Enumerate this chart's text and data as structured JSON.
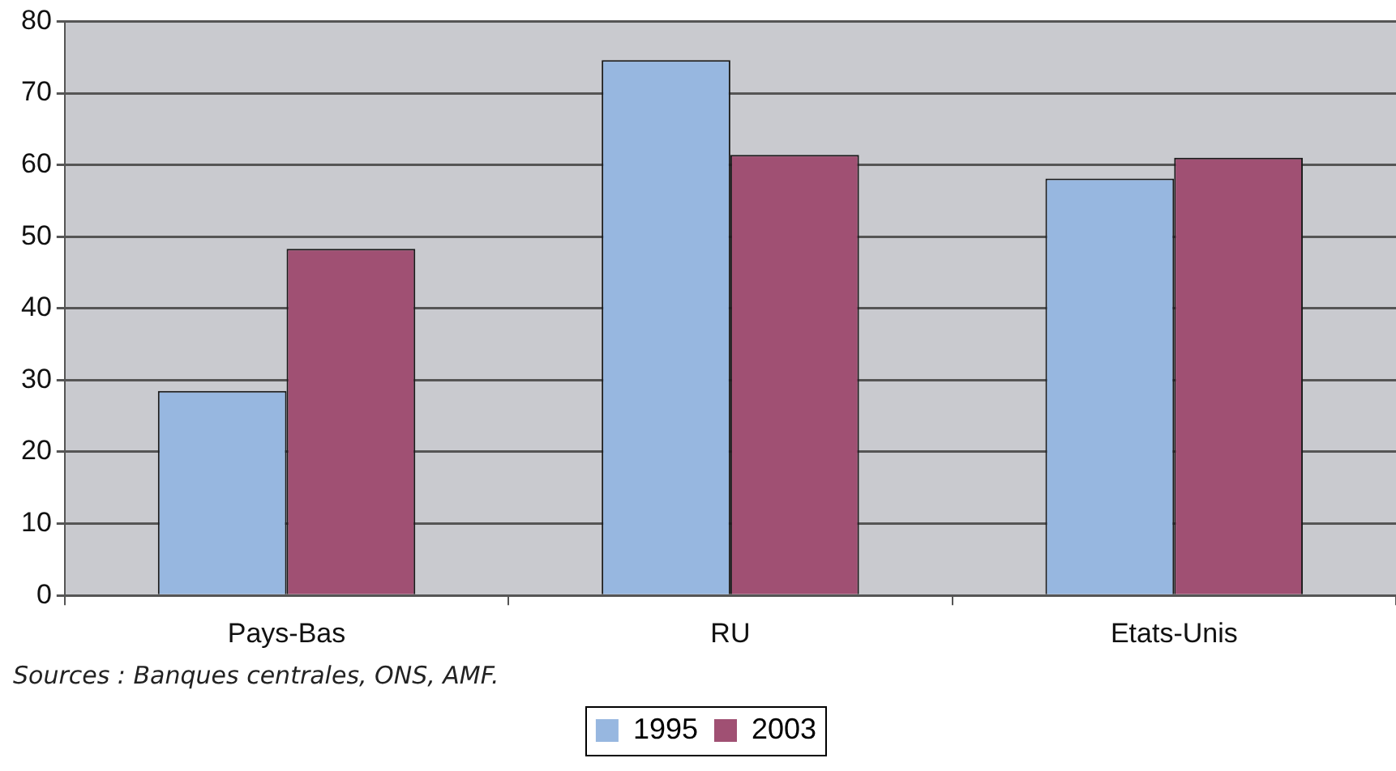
{
  "chart_data": {
    "type": "bar",
    "categories": [
      "Pays-Bas",
      "RU",
      "Etats-Unis"
    ],
    "series": [
      {
        "name": "1995",
        "color": "#97b7e0",
        "values": [
          28.5,
          74.6,
          58.1
        ]
      },
      {
        "name": "2003",
        "color": "#a05073",
        "values": [
          48.3,
          61.4,
          61.0
        ]
      }
    ],
    "ylim": [
      0,
      80
    ],
    "yticks": [
      0,
      10,
      20,
      30,
      40,
      50,
      60,
      70,
      80
    ],
    "grid": "y",
    "legend": "bottom",
    "annotations": [
      "Sources : Banques centrales, ONS, AMF."
    ]
  }
}
